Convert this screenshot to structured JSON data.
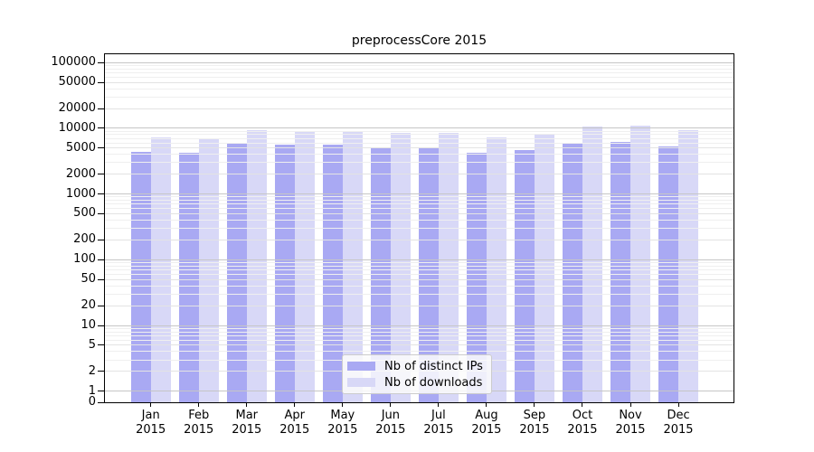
{
  "figure": {
    "title": "preprocessCore 2015"
  },
  "chart_data": {
    "type": "bar",
    "title": "preprocessCore 2015",
    "subtitle": "",
    "xlabel": "",
    "ylabel": "",
    "scale": "log",
    "grid": "on",
    "legend_position": "lower-center",
    "categories": [
      "Jan",
      "Feb",
      "Mar",
      "Apr",
      "May",
      "Jun",
      "Jul",
      "Aug",
      "Sep",
      "Oct",
      "Nov",
      "Dec"
    ],
    "year_label": "2015",
    "series": [
      {
        "name": "Nb of distinct IPs",
        "color": "#a9a9f3",
        "values": [
          4400,
          4250,
          5900,
          5700,
          5650,
          5200,
          5050,
          4200,
          4650,
          6000,
          6200,
          5350
        ]
      },
      {
        "name": "Nb of downloads",
        "color": "#d8d8f7",
        "values": [
          7300,
          7000,
          9300,
          9000,
          9100,
          8600,
          8400,
          7350,
          8000,
          10600,
          10900,
          9300
        ]
      }
    ],
    "yticks": [
      100000,
      50000,
      20000,
      10000,
      5000,
      2000,
      1000,
      500,
      200,
      100,
      50,
      20,
      10,
      5,
      2,
      1,
      0
    ],
    "ylim": [
      0,
      133000
    ]
  }
}
